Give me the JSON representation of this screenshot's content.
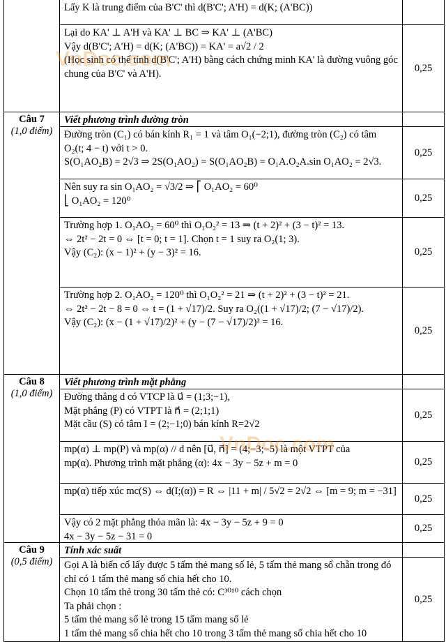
{
  "watermark": "VnDoc.com",
  "groups": [
    {
      "parts": [
        {
          "lines": [
            "Lấy K là trung điểm của B'C' thì d(B'C'; A'H) = d(K; (A'BC))"
          ]
        },
        {
          "lines": [
            "Lại do KA' ⊥ A'H và KA' ⊥ BC ⇒ KA' ⊥ (A'BC)",
            "Vậy d(B'C'; A'H) = d(K; (A'BC)) = KA' = a√2 / 2",
            "(Học sinh có thể tính d(B'C'; A'H) bằng cách chứng minh KA' là đường vuông góc chung của B'C' và A'H)."
          ],
          "score": "0,25"
        }
      ]
    },
    {
      "label": "Câu 7",
      "points": "(1,0 điểm)",
      "title": "Viết phương trình đường tròn",
      "parts": [
        {
          "lines": [
            "Đường tròn (C₁) có bán kính R₁ = 1 và tâm O₁(−2;1), đường tròn (C₂) có tâm O₂(t; 4 − t) với t > 0.",
            "S(O₁AO₂B) = 2√3 ⇒ 2S(O₁AO₂) = S(O₁AO₂B) = O₁A.O₂A.sin O₁AO₂ = 2√3."
          ],
          "score": "0,25"
        },
        {
          "lines": [
            "Nên suy ra sin O₁AO₂ = √3/2 ⇒ ⎡ O₁AO₂ = 60⁰",
            "⎣ O₁AO₂ = 120⁰"
          ],
          "score": "0,25"
        },
        {
          "lines": [
            "Trường hợp 1. O₁AO₂ = 60⁰ thì O₁O₂² = 13 ⇒ (t + 2)² + (3 − t)² = 13.",
            "⇔ 2t² − 2t = 0 ⇔ [t = 0; t = 1]. Chọn t = 1 suy ra O₂(1; 3).",
            "Vậy (C₂): (x − 1)² + (y − 3)² = 16."
          ],
          "score": "0,25"
        },
        {
          "lines": [
            "Trường hợp 2. O₁AO₂ = 120⁰ thì O₁O₂² = 21 ⇒ (t + 2)² + (3 − t)² = 21.",
            "⇔ 2t² − 2t − 8 = 0 ⇔ t = (1 + √17)/2. Suy ra O₂((1 + √17)/2; (7 − √17)/2).",
            "Vậy (C₂): (x − (1 + √17)/2)² + (y − (7 − √17)/2)² = 16."
          ],
          "score": "0,25"
        }
      ]
    },
    {
      "label": "Câu 8",
      "points": "(1,0 điểm)",
      "title": "Viết phương trình mặt phẳng",
      "parts": [
        {
          "lines": [
            "Đường thẳng d có VTCP là u⃗ = (1;3;−1),",
            "Mặt phẳng (P) có VTPT là n⃗ = (2;1;1)",
            "Mặt cầu (S) có tâm I = (2;−1;0) bán kính R=2√2"
          ],
          "score": "0,25"
        },
        {
          "lines": [
            "mp(α) ⊥ mp(P) và mp(α) // d nên [u⃗, n⃗] = (4;−3;−5) là một VTPT của",
            "mp(α). Phương trình mặt phẳng (α): 4x − 3y − 5z + m = 0"
          ],
          "score": "0,25"
        },
        {
          "lines": [
            "mp(α) tiếp xúc mc(S) ⇔ d(I;(α)) = R ⇔ |11 + m| / 5√2 = 2√2 ⇔ [m = 9; m = −31]"
          ],
          "score": "0,25"
        },
        {
          "lines": [
            "Vậy có 2 mặt phẳng thỏa mãn là: 4x − 3y − 5z + 9 = 0",
            "4x − 3y − 5z − 31 = 0"
          ],
          "score": "0,25"
        }
      ]
    },
    {
      "label": "Câu 9",
      "points": "(0,5 điểm)",
      "title": "Tính xác suất",
      "parts": [
        {
          "lines": [
            "Gọi A là biến cố lấy được 5 tấm thẻ mang số lẻ, 5 tấm thẻ mang số chẵn trong đó chỉ có 1 tấm thẻ mang số chia hết cho 10.",
            "Chọn 10 tấm thẻ trong 30 tấm thẻ có: C³⁰¹⁰ cách chọn",
            "Ta phải chọn :",
            "5 tấm thẻ mang số lẻ trong 15 tấm mang số lẻ",
            "1 tấm thẻ mang số chia hết cho 10 trong 3 tấm thẻ mang số chia hết cho 10"
          ],
          "score": "0,25"
        }
      ]
    }
  ]
}
